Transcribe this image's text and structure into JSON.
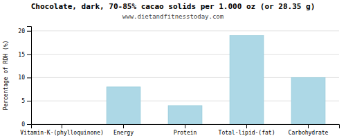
{
  "chart_data": {
    "type": "bar",
    "title": "Chocolate, dark, 70-85% cacao solids per 1.000 oz (or 28.35 g)",
    "subtitle": "www.dietandfitnesstoday.com",
    "ylabel": "Percentage of RDH (%)",
    "categories": [
      "Vitamin-K-(phylloquinone)",
      "Energy",
      "Protein",
      "Total-lipid-(fat)",
      "Carbohydrate"
    ],
    "values": [
      0,
      8,
      4,
      19,
      10
    ],
    "color": "#add8e6",
    "ylim": [
      0,
      21
    ],
    "yticks": [
      0,
      5,
      10,
      15,
      20
    ],
    "grid": true
  }
}
